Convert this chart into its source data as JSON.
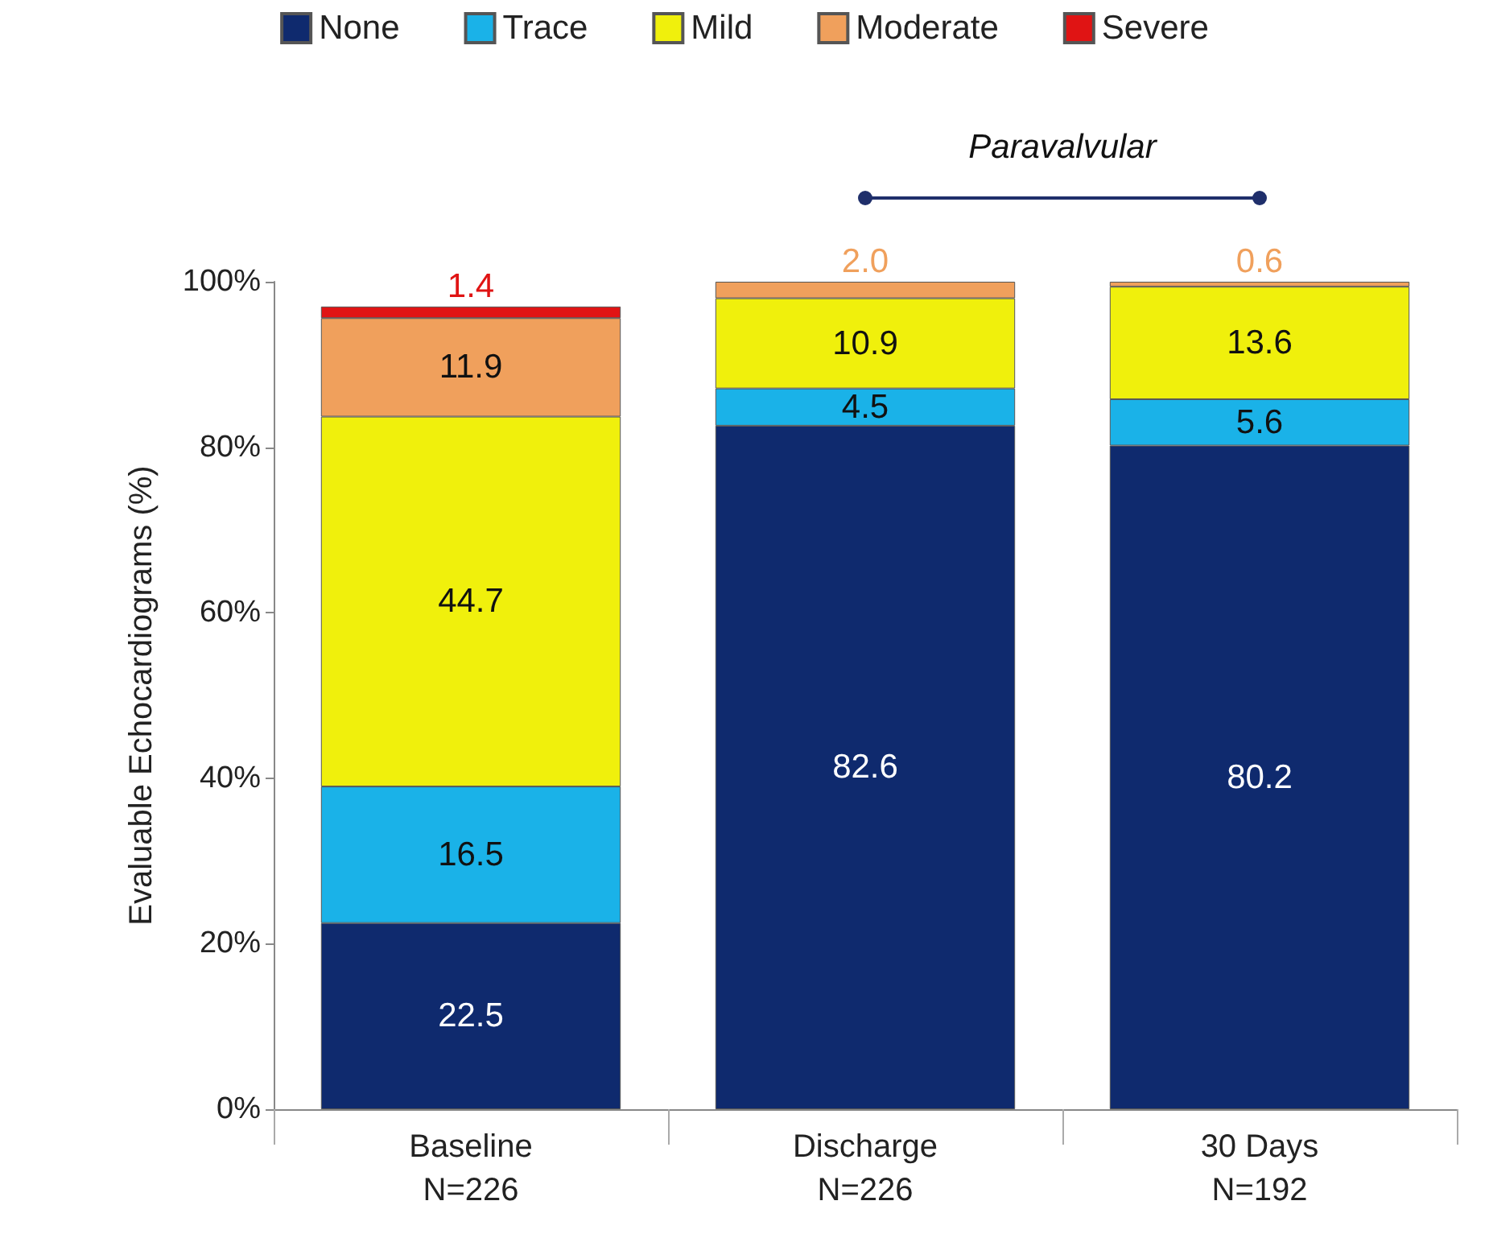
{
  "chart_data": {
    "type": "bar",
    "stacked": true,
    "categories": [
      "Baseline\nN=226",
      "Discharge\nN=226",
      "30 Days\nN=192"
    ],
    "ylabel": "Evaluable Echocardiograms (%)",
    "ylim": [
      0,
      100
    ],
    "yticks": [
      {
        "value": 0,
        "label": "0%"
      },
      {
        "value": 20,
        "label": "20%"
      },
      {
        "value": 40,
        "label": "40%"
      },
      {
        "value": 60,
        "label": "60%"
      },
      {
        "value": 80,
        "label": "80%"
      },
      {
        "value": 100,
        "label": "100%"
      }
    ],
    "series": [
      {
        "name": "None",
        "color": "#0f2a6e",
        "values": [
          22.5,
          82.6,
          80.2
        ],
        "value_labels": [
          "22.5",
          "82.6",
          "80.2"
        ]
      },
      {
        "name": "Trace",
        "color": "#1ab2e8",
        "values": [
          16.5,
          4.5,
          5.6
        ],
        "value_labels": [
          "16.5",
          "4.5",
          "5.6"
        ]
      },
      {
        "name": "Mild",
        "color": "#f0f00c",
        "values": [
          44.7,
          10.9,
          13.6
        ],
        "value_labels": [
          "44.7",
          "10.9",
          "13.6"
        ]
      },
      {
        "name": "Moderate",
        "color": "#f0a05c",
        "values": [
          11.9,
          2.0,
          0.6
        ],
        "value_labels": [
          "11.9",
          "2.0",
          "0.6"
        ]
      },
      {
        "name": "Severe",
        "color": "#e01414",
        "values": [
          1.4,
          null,
          null
        ],
        "value_labels": [
          "1.4",
          null,
          null
        ]
      }
    ],
    "annotations": [
      "Paravalvular"
    ],
    "grid": false,
    "legend": "top"
  }
}
